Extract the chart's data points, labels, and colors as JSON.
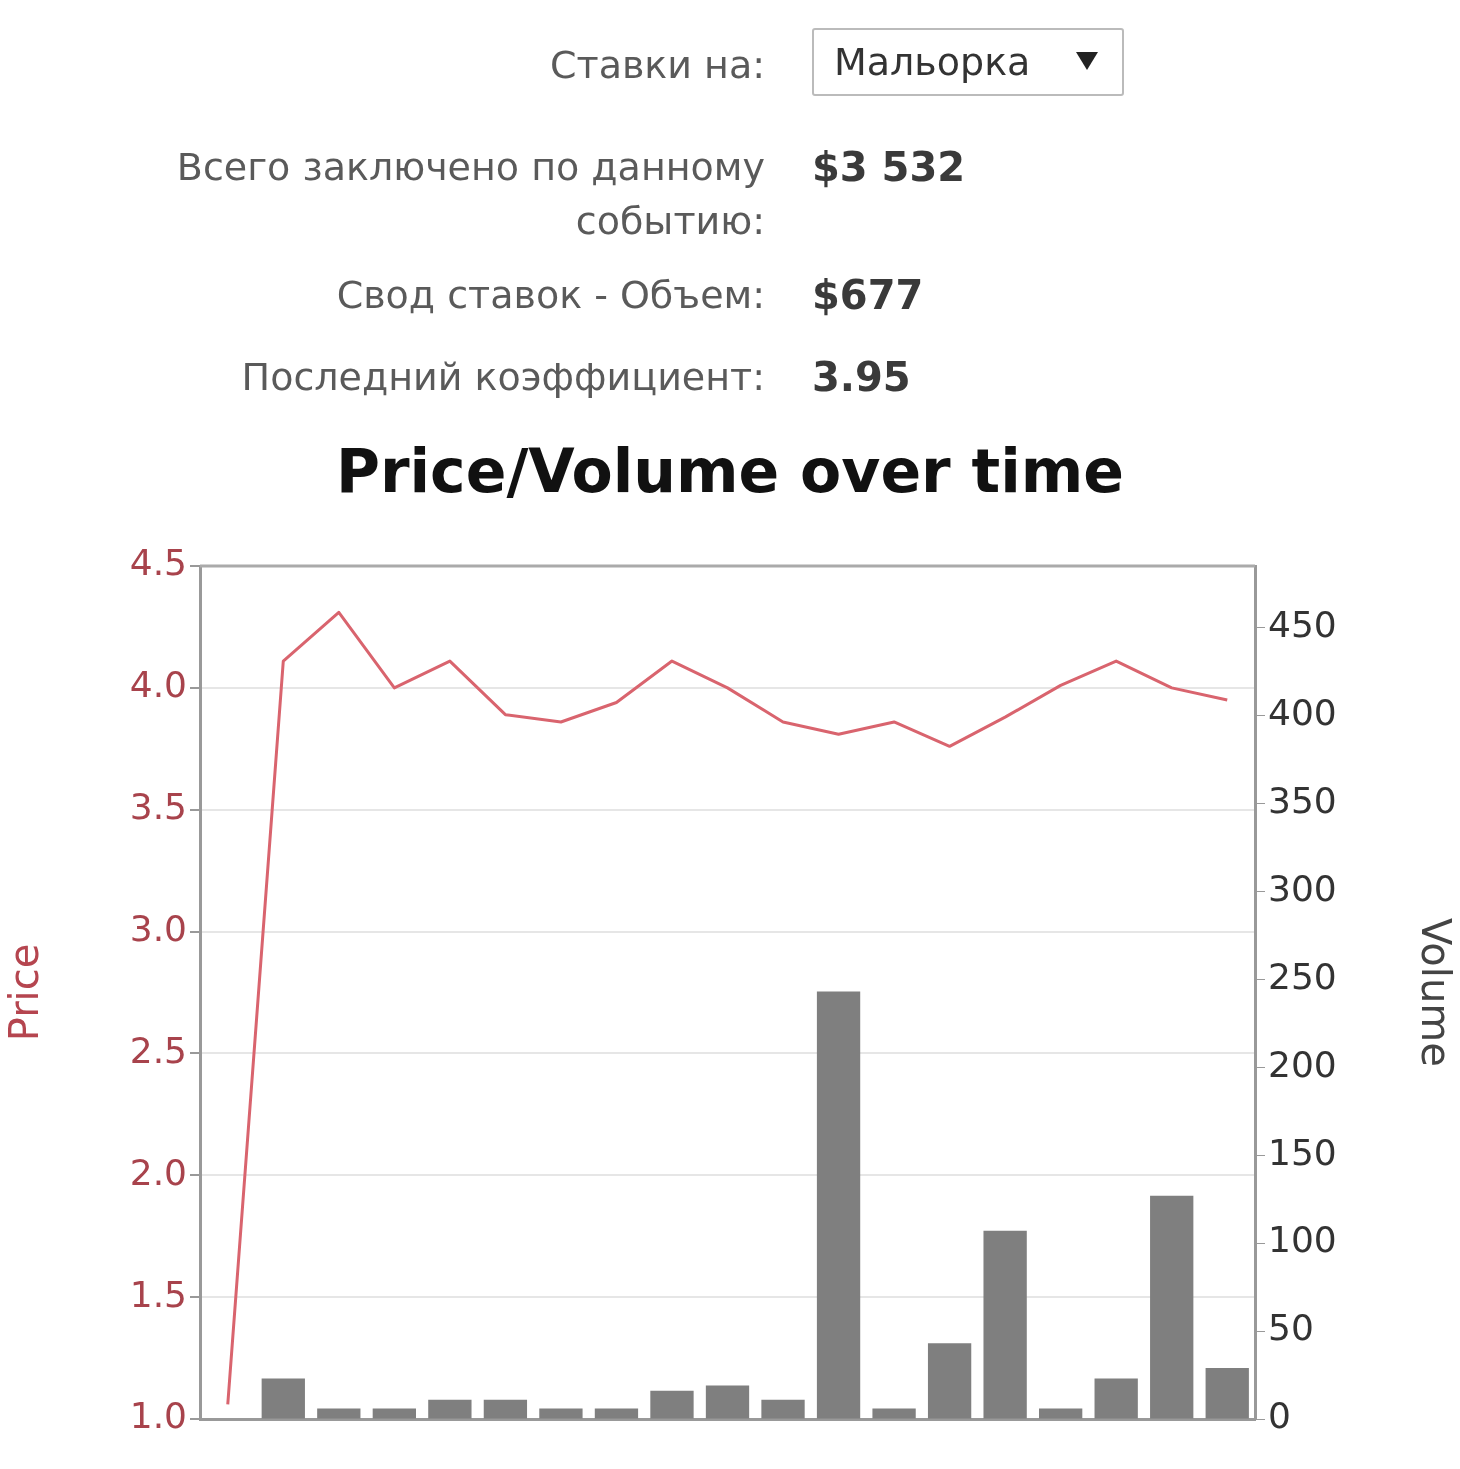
{
  "chart_data": {
    "type": "bar",
    "title": "Price/Volume over time",
    "ylabel": "Price",
    "y2label": "Volume",
    "annotations": [
      "Ставки на:",
      "Мальорка",
      "Всего заключено по данному событию:",
      "$3 532",
      "Свод ставок - Объем:",
      "$677",
      "Последний коэффициент:",
      "3.95"
    ],
    "categories": [
      null,
      null,
      null,
      null,
      null,
      null,
      null,
      null,
      null,
      null,
      null,
      null,
      null,
      null,
      null,
      null,
      null,
      null,
      null
    ],
    "series": [
      {
        "type": "line",
        "color": "#d9646e",
        "values": [
          1.06,
          4.11,
          4.31,
          4.0,
          4.11,
          3.89,
          3.86,
          3.94,
          4.11,
          4.0,
          3.86,
          3.81,
          3.86,
          3.76,
          3.88,
          4.01,
          4.11,
          4.0,
          3.95
        ]
      },
      {
        "axis": "y2",
        "color": "#7f7f7f",
        "values": [
          null,
          23,
          6,
          6,
          11,
          11,
          6,
          6,
          16,
          19,
          11,
          243,
          6,
          43,
          107,
          6,
          23,
          127,
          29
        ]
      }
    ],
    "ylim": [
      1.0,
      4.5
    ],
    "yticks": [
      {
        "value": 1.0,
        "label": "1.0"
      },
      {
        "value": 1.5,
        "label": "1.5"
      },
      {
        "value": 2.0,
        "label": "2.0"
      },
      {
        "value": 2.5,
        "label": "2.5"
      },
      {
        "value": 3.0,
        "label": "3.0"
      },
      {
        "value": 3.5,
        "label": "3.5"
      },
      {
        "value": 4.0,
        "label": "4.0"
      },
      {
        "value": 4.5,
        "label": "4.5"
      }
    ],
    "y2lim": [
      0,
      485
    ],
    "y2ticks": [
      0,
      50,
      100,
      150,
      200,
      250,
      300,
      350,
      400,
      450
    ],
    "grid": "y",
    "legend": false,
    "marker": "none",
    "line_style": "solid"
  }
}
